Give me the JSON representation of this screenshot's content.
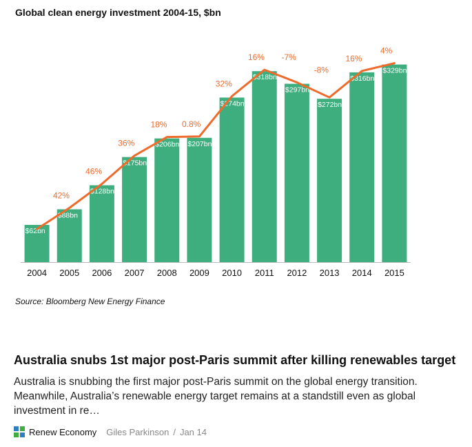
{
  "chart_data": {
    "type": "bar",
    "title": "Global clean energy investment 2004-15, $bn",
    "categories": [
      "2004",
      "2005",
      "2006",
      "2007",
      "2008",
      "2009",
      "2010",
      "2011",
      "2012",
      "2013",
      "2014",
      "2015"
    ],
    "values": [
      62,
      88,
      128,
      175,
      206,
      207,
      274,
      318,
      297,
      272,
      316,
      329
    ],
    "bar_labels": [
      "$62bn",
      "$88bn",
      "$128bn",
      "$175bn",
      "$206bn",
      "$207bn",
      "$274bn",
      "$318bn",
      "$297bn",
      "$272bn",
      "$316bn",
      "$329bn"
    ],
    "growth_labels": [
      "",
      "42%",
      "46%",
      "36%",
      "18%",
      "0.8%",
      "32%",
      "16%",
      "-7%",
      "-8%",
      "16%",
      "4%"
    ],
    "ylim": [
      0,
      340
    ],
    "grid": false,
    "legend": "none",
    "source": "Source: Bloomberg New Energy Finance",
    "colors": {
      "bar": "#3fae7e",
      "line": "#ee6b2c",
      "growth_label": "#ee6b2c",
      "bar_label": "#ffffff",
      "axis": "#bbbbbb"
    }
  },
  "article": {
    "headline": "Australia snubs 1st major post-Paris summit after killing renewables target",
    "excerpt": "Australia is snubbing the first major post-Paris summit on the global energy transition. Meanwhile, Australia’s renewable energy target remains at a standstill even as global investment in re…",
    "site_name": "Renew Economy",
    "site_icon": "renew-economy-logo-icon",
    "author": "Giles Parkinson",
    "separator": "/",
    "date": "Jan 14"
  }
}
